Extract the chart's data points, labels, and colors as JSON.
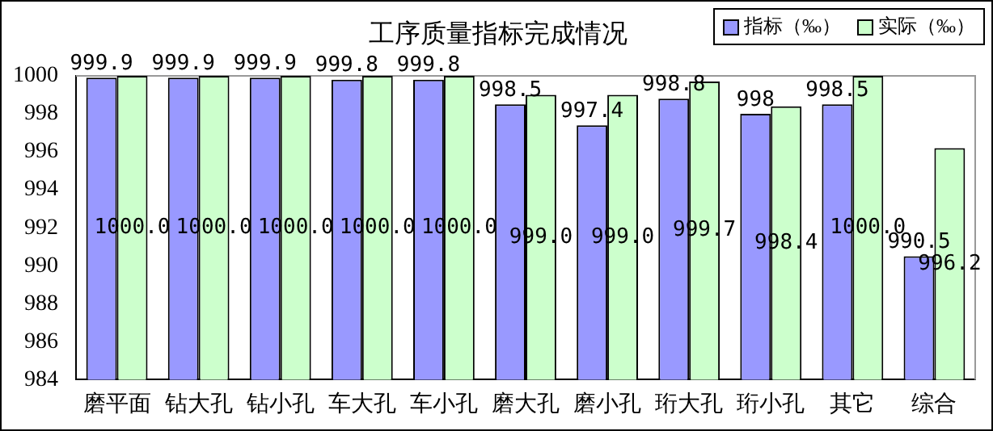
{
  "chart_data": {
    "type": "bar",
    "title": "工序质量指标完成情况",
    "categories": [
      "磨平面",
      "钻大孔",
      "钻小孔",
      "车大孔",
      "车小孔",
      "磨大孔",
      "磨小孔",
      "珩大孔",
      "珩小孔",
      "其它",
      "综合"
    ],
    "series": [
      {
        "name": "指标（‰）",
        "color": "#9999ff",
        "values": [
          999.9,
          999.9,
          999.9,
          999.8,
          999.8,
          998.5,
          997.4,
          998.8,
          998,
          998.5,
          990.5
        ],
        "value_labels": [
          "999.9",
          "999.9",
          "999.9",
          "999.8",
          "999.8",
          "998.5",
          "997.4",
          "998.8",
          "998",
          "998.5",
          "990.5"
        ]
      },
      {
        "name": "实际（‰）",
        "color": "#ccffcc",
        "values": [
          1000,
          1000,
          1000,
          1000,
          1000,
          999,
          999,
          999.7,
          998.4,
          1000,
          996.2
        ],
        "value_labels": [
          "1000.0",
          "1000.0",
          "1000.0",
          "1000.0",
          "1000.0",
          "999.0",
          "999.0",
          "999.7",
          "998.4",
          "1000.0",
          "996.2"
        ]
      }
    ],
    "ylim": [
      984,
      1000
    ],
    "yticks": [
      984,
      986,
      988,
      990,
      992,
      994,
      996,
      998,
      1000
    ],
    "grid": false,
    "legend": "top right"
  }
}
